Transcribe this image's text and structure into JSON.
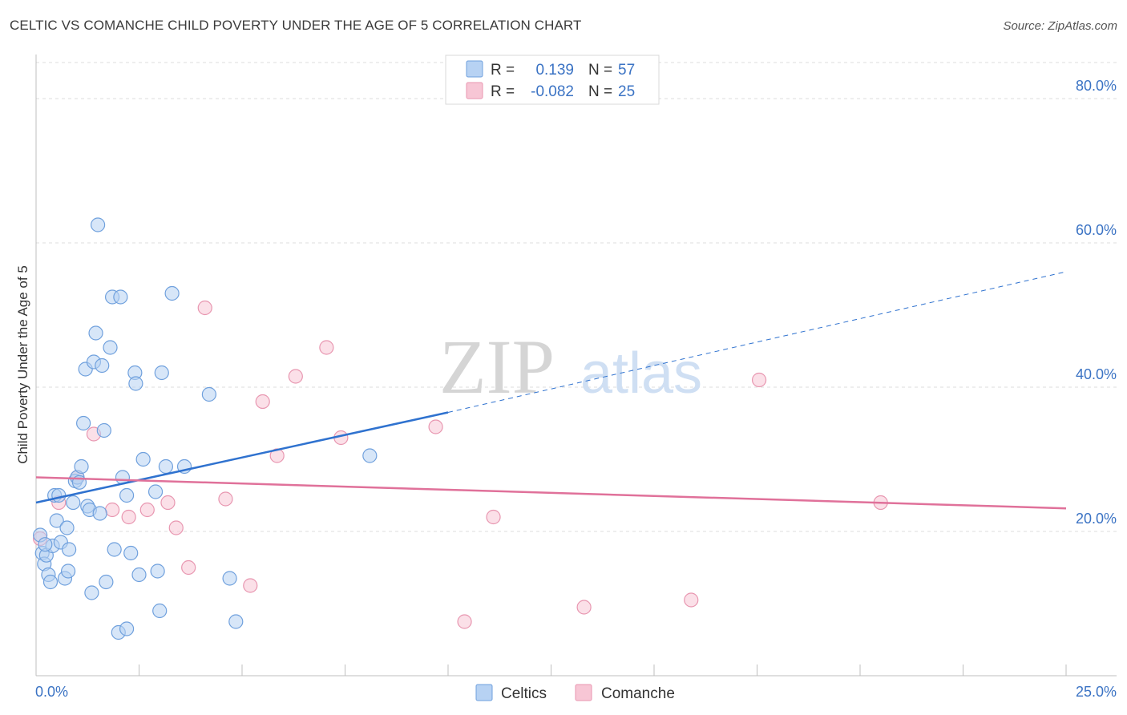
{
  "title": "CELTIC VS COMANCHE CHILD POVERTY UNDER THE AGE OF 5 CORRELATION CHART",
  "source": "Source: ZipAtlas.com",
  "watermark": {
    "zip": "ZIP",
    "atlas": "atlas"
  },
  "colors": {
    "celtics_fill": "#b7d2f3",
    "celtics_stroke": "#6fa0dd",
    "celtics_line": "#2f72cf",
    "comanche_fill": "#f7c6d5",
    "comanche_stroke": "#e896b0",
    "comanche_line": "#e0719a",
    "tick_text": "#3b73c4"
  },
  "legend": {
    "rows": [
      {
        "r_label": "R =",
        "r_value": "0.139",
        "n_label": "N =",
        "n_value": "57"
      },
      {
        "r_label": "R =",
        "r_value": "-0.082",
        "n_label": "N =",
        "n_value": "25"
      }
    ]
  },
  "chart_data": {
    "type": "scatter",
    "title": "CELTIC VS COMANCHE CHILD POVERTY UNDER THE AGE OF 5 CORRELATION CHART",
    "xlabel": "",
    "ylabel": "Child Poverty Under the Age of 5",
    "xlim": [
      0,
      25
    ],
    "ylim": [
      0,
      85
    ],
    "x_tick_labels": [
      "0.0%",
      "25.0%"
    ],
    "y_ticks": [
      20,
      40,
      60,
      80
    ],
    "y_tick_labels": [
      "20.0%",
      "40.0%",
      "60.0%",
      "80.0%"
    ],
    "grid": true,
    "legend_position": "top-center",
    "series": [
      {
        "name": "Celtics",
        "points": [
          [
            0.15,
            17
          ],
          [
            0.2,
            15.5
          ],
          [
            0.25,
            16.7
          ],
          [
            0.3,
            14
          ],
          [
            0.35,
            13
          ],
          [
            0.4,
            18
          ],
          [
            0.45,
            25
          ],
          [
            0.5,
            21.5
          ],
          [
            0.55,
            25
          ],
          [
            0.6,
            18.5
          ],
          [
            0.7,
            13.5
          ],
          [
            0.75,
            20.5
          ],
          [
            0.78,
            14.5
          ],
          [
            0.8,
            17.5
          ],
          [
            0.9,
            24
          ],
          [
            0.95,
            27
          ],
          [
            1.0,
            27.5
          ],
          [
            1.05,
            26.8
          ],
          [
            1.1,
            29
          ],
          [
            1.15,
            35
          ],
          [
            1.2,
            42.5
          ],
          [
            1.25,
            23.5
          ],
          [
            1.3,
            23
          ],
          [
            1.35,
            11.5
          ],
          [
            1.4,
            43.5
          ],
          [
            1.45,
            47.5
          ],
          [
            1.5,
            62.5
          ],
          [
            1.55,
            22.5
          ],
          [
            1.6,
            43
          ],
          [
            1.65,
            34
          ],
          [
            1.7,
            13
          ],
          [
            1.8,
            45.5
          ],
          [
            1.85,
            52.5
          ],
          [
            1.9,
            17.5
          ],
          [
            2.0,
            6
          ],
          [
            2.05,
            52.5
          ],
          [
            2.1,
            27.5
          ],
          [
            2.2,
            6.5
          ],
          [
            2.2,
            25
          ],
          [
            2.3,
            17
          ],
          [
            2.4,
            42
          ],
          [
            2.42,
            40.5
          ],
          [
            2.5,
            14
          ],
          [
            2.6,
            30
          ],
          [
            2.9,
            25.5
          ],
          [
            2.95,
            14.5
          ],
          [
            3.0,
            9
          ],
          [
            3.05,
            42
          ],
          [
            3.15,
            29
          ],
          [
            3.3,
            53
          ],
          [
            3.6,
            29
          ],
          [
            4.2,
            39
          ],
          [
            4.7,
            13.5
          ],
          [
            4.85,
            7.5
          ],
          [
            8.1,
            30.5
          ],
          [
            0.1,
            19.5
          ],
          [
            0.22,
            18.2
          ]
        ]
      },
      {
        "name": "Comanche",
        "points": [
          [
            0.1,
            19
          ],
          [
            0.55,
            24
          ],
          [
            1.0,
            27.5
          ],
          [
            1.4,
            33.5
          ],
          [
            1.85,
            23
          ],
          [
            2.25,
            22
          ],
          [
            2.7,
            23
          ],
          [
            3.2,
            24
          ],
          [
            3.4,
            20.5
          ],
          [
            3.7,
            15
          ],
          [
            4.1,
            51
          ],
          [
            4.6,
            24.5
          ],
          [
            5.2,
            12.5
          ],
          [
            5.5,
            38
          ],
          [
            5.85,
            30.5
          ],
          [
            6.3,
            41.5
          ],
          [
            7.05,
            45.5
          ],
          [
            7.4,
            33
          ],
          [
            9.7,
            34.5
          ],
          [
            10.4,
            7.5
          ],
          [
            11.1,
            22
          ],
          [
            13.3,
            9.5
          ],
          [
            15.9,
            10.5
          ],
          [
            17.55,
            41
          ],
          [
            20.5,
            24
          ]
        ]
      }
    ],
    "trendlines": [
      {
        "name": "Celtics",
        "x_start": 0,
        "y_start": 24,
        "x_solid_end": 10,
        "y_solid_end": 36.5,
        "x_end": 25,
        "y_end": 56
      },
      {
        "name": "Comanche",
        "x_start": 0,
        "y_start": 27.5,
        "x_end": 25,
        "y_end": 23.2
      }
    ]
  }
}
